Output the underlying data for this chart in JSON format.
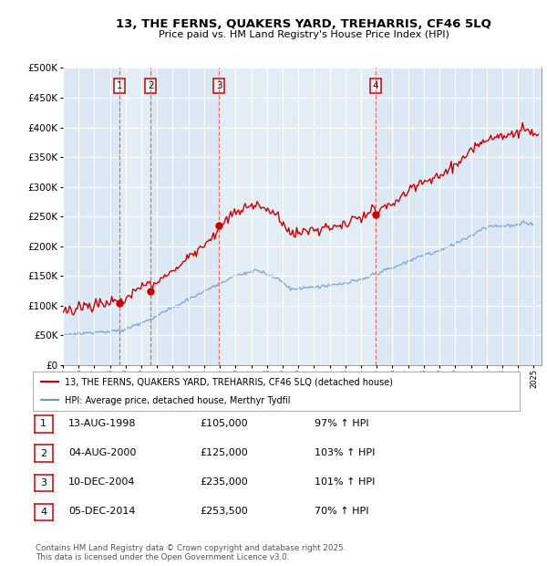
{
  "title": "13, THE FERNS, QUAKERS YARD, TREHARRIS, CF46 5LQ",
  "subtitle": "Price paid vs. HM Land Registry's House Price Index (HPI)",
  "ylim": [
    0,
    500000
  ],
  "yticks": [
    0,
    50000,
    100000,
    150000,
    200000,
    250000,
    300000,
    350000,
    400000,
    450000,
    500000
  ],
  "plot_bg_color": "#dce9f5",
  "fig_bg_color": "#ffffff",
  "legend_label_red": "13, THE FERNS, QUAKERS YARD, TREHARRIS, CF46 5LQ (detached house)",
  "legend_label_blue": "HPI: Average price, detached house, Merthyr Tydfil",
  "transactions": [
    {
      "num": 1,
      "date": "13-AUG-1998",
      "price": "£105,000",
      "hpi": "97% ↑ HPI",
      "year": 1998.62
    },
    {
      "num": 2,
      "date": "04-AUG-2000",
      "price": "£125,000",
      "hpi": "103% ↑ HPI",
      "year": 2000.59
    },
    {
      "num": 3,
      "date": "10-DEC-2004",
      "price": "£235,000",
      "hpi": "101% ↑ HPI",
      "year": 2004.94
    },
    {
      "num": 4,
      "date": "05-DEC-2014",
      "price": "£253,500",
      "hpi": "70% ↑ HPI",
      "year": 2014.93
    }
  ],
  "sale_prices": [
    105000,
    125000,
    235000,
    253500
  ],
  "footnote": "Contains HM Land Registry data © Crown copyright and database right 2025.\nThis data is licensed under the Open Government Licence v3.0.",
  "red_color": "#cc0000",
  "blue_color": "#6699cc",
  "vline_color": "#ee4444",
  "dot_color": "#cc0000",
  "stripe_color": "#e8f0f8"
}
